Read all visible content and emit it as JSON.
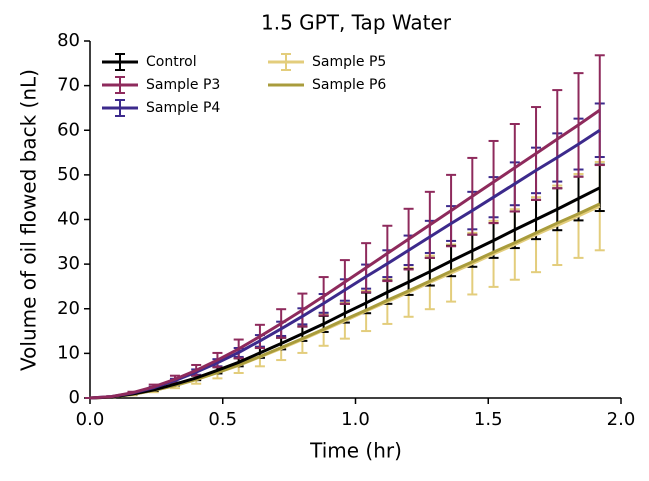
{
  "chart_data": {
    "type": "errorbar-line",
    "title": "1.5 GPT, Tap Water",
    "x_label": "Time (hr)",
    "y_label": "Volume of oil flowed back (nL)",
    "x": [
      0,
      0.08,
      0.16,
      0.24,
      0.32,
      0.4,
      0.48,
      0.56,
      0.64,
      0.72,
      0.8,
      0.88,
      0.96,
      1.04,
      1.12,
      1.2,
      1.28,
      1.36,
      1.44,
      1.52,
      1.6,
      1.68,
      1.76,
      1.84,
      1.92
    ],
    "series": [
      {
        "name": "Control",
        "color": "#000000",
        "values": [
          0,
          0.2,
          0.9,
          1.8,
          3.1,
          4.5,
          6.2,
          8,
          10.1,
          12.2,
          14.4,
          16.6,
          19,
          21.3,
          23.7,
          26,
          28.3,
          30.7,
          33,
          35.3,
          37.7,
          40,
          42.3,
          44.7,
          47.1
        ],
        "errors": [
          0,
          0,
          0.1,
          0.2,
          0.3,
          0.5,
          0.7,
          0.9,
          1.1,
          1.3,
          1.6,
          1.8,
          2.1,
          2.3,
          2.6,
          2.9,
          3.1,
          3.4,
          3.6,
          3.9,
          4.1,
          4.4,
          4.7,
          4.9,
          5.2
        ]
      },
      {
        "name": "Sample P3",
        "color": "#8e2a5c",
        "values": [
          0,
          0.3,
          1.2,
          2.5,
          4.2,
          6.2,
          8.5,
          11,
          13.8,
          16.7,
          19.7,
          22.8,
          26,
          29.2,
          32.4,
          35.6,
          38.8,
          42,
          45.2,
          48.4,
          51.6,
          54.8,
          58,
          61.2,
          64.5
        ],
        "errors": [
          0,
          0.1,
          0.2,
          0.5,
          0.8,
          1.2,
          1.6,
          2.1,
          2.6,
          3.2,
          3.7,
          4.3,
          4.9,
          5.5,
          6.2,
          6.8,
          7.4,
          8,
          8.6,
          9.2,
          9.8,
          10.4,
          11,
          11.6,
          12.3
        ]
      },
      {
        "name": "Sample P4",
        "color": "#3c2a8c",
        "values": [
          0,
          0.3,
          1.1,
          2.3,
          3.9,
          5.8,
          7.9,
          10.2,
          12.8,
          15.5,
          18.3,
          21.2,
          24.2,
          27.2,
          30.1,
          33.1,
          36.1,
          39.1,
          42,
          45,
          48,
          51,
          53.9,
          56.9,
          60
        ],
        "errors": [
          0,
          0,
          0.1,
          0.2,
          0.4,
          0.6,
          0.8,
          1,
          1.3,
          1.6,
          1.8,
          2.1,
          2.4,
          2.7,
          3,
          3.3,
          3.6,
          3.9,
          4.2,
          4.5,
          4.8,
          5.1,
          5.4,
          5.7,
          6
        ]
      },
      {
        "name": "Sample P5",
        "color": "#e3cd7c",
        "values": [
          0,
          0.2,
          0.8,
          1.7,
          2.8,
          4.1,
          5.7,
          7.3,
          9.2,
          11.1,
          13.1,
          15.2,
          17.3,
          19.5,
          21.6,
          23.7,
          25.9,
          28,
          30.1,
          32.3,
          34.4,
          36.6,
          38.7,
          40.8,
          43
        ],
        "errors": [
          0,
          0,
          0.2,
          0.4,
          0.6,
          0.9,
          1.3,
          1.7,
          2.1,
          2.6,
          3,
          3.5,
          4,
          4.5,
          5,
          5.5,
          6,
          6.4,
          6.9,
          7.4,
          7.9,
          8.4,
          8.9,
          9.4,
          9.9
        ]
      },
      {
        "name": "Sample P6",
        "color": "#a99c3c",
        "values": [
          0,
          0.2,
          0.8,
          1.7,
          2.8,
          4.2,
          5.7,
          7.4,
          9.3,
          11.3,
          13.3,
          15.4,
          17.6,
          19.7,
          21.9,
          24,
          26.2,
          28.4,
          30.5,
          32.7,
          34.8,
          37,
          39.2,
          41.3,
          43.5
        ]
      }
    ],
    "xlim": [
      0,
      2
    ],
    "ylim": [
      0,
      80
    ],
    "xticks": [
      {
        "value": 0,
        "label": "0.0"
      },
      0.5,
      {
        "value": 1,
        "label": "1.0"
      },
      1.5,
      {
        "value": 2,
        "label": "2.0"
      }
    ],
    "yticks": [
      0,
      10,
      20,
      30,
      40,
      50,
      60,
      70,
      80
    ],
    "legend": "upper left"
  }
}
